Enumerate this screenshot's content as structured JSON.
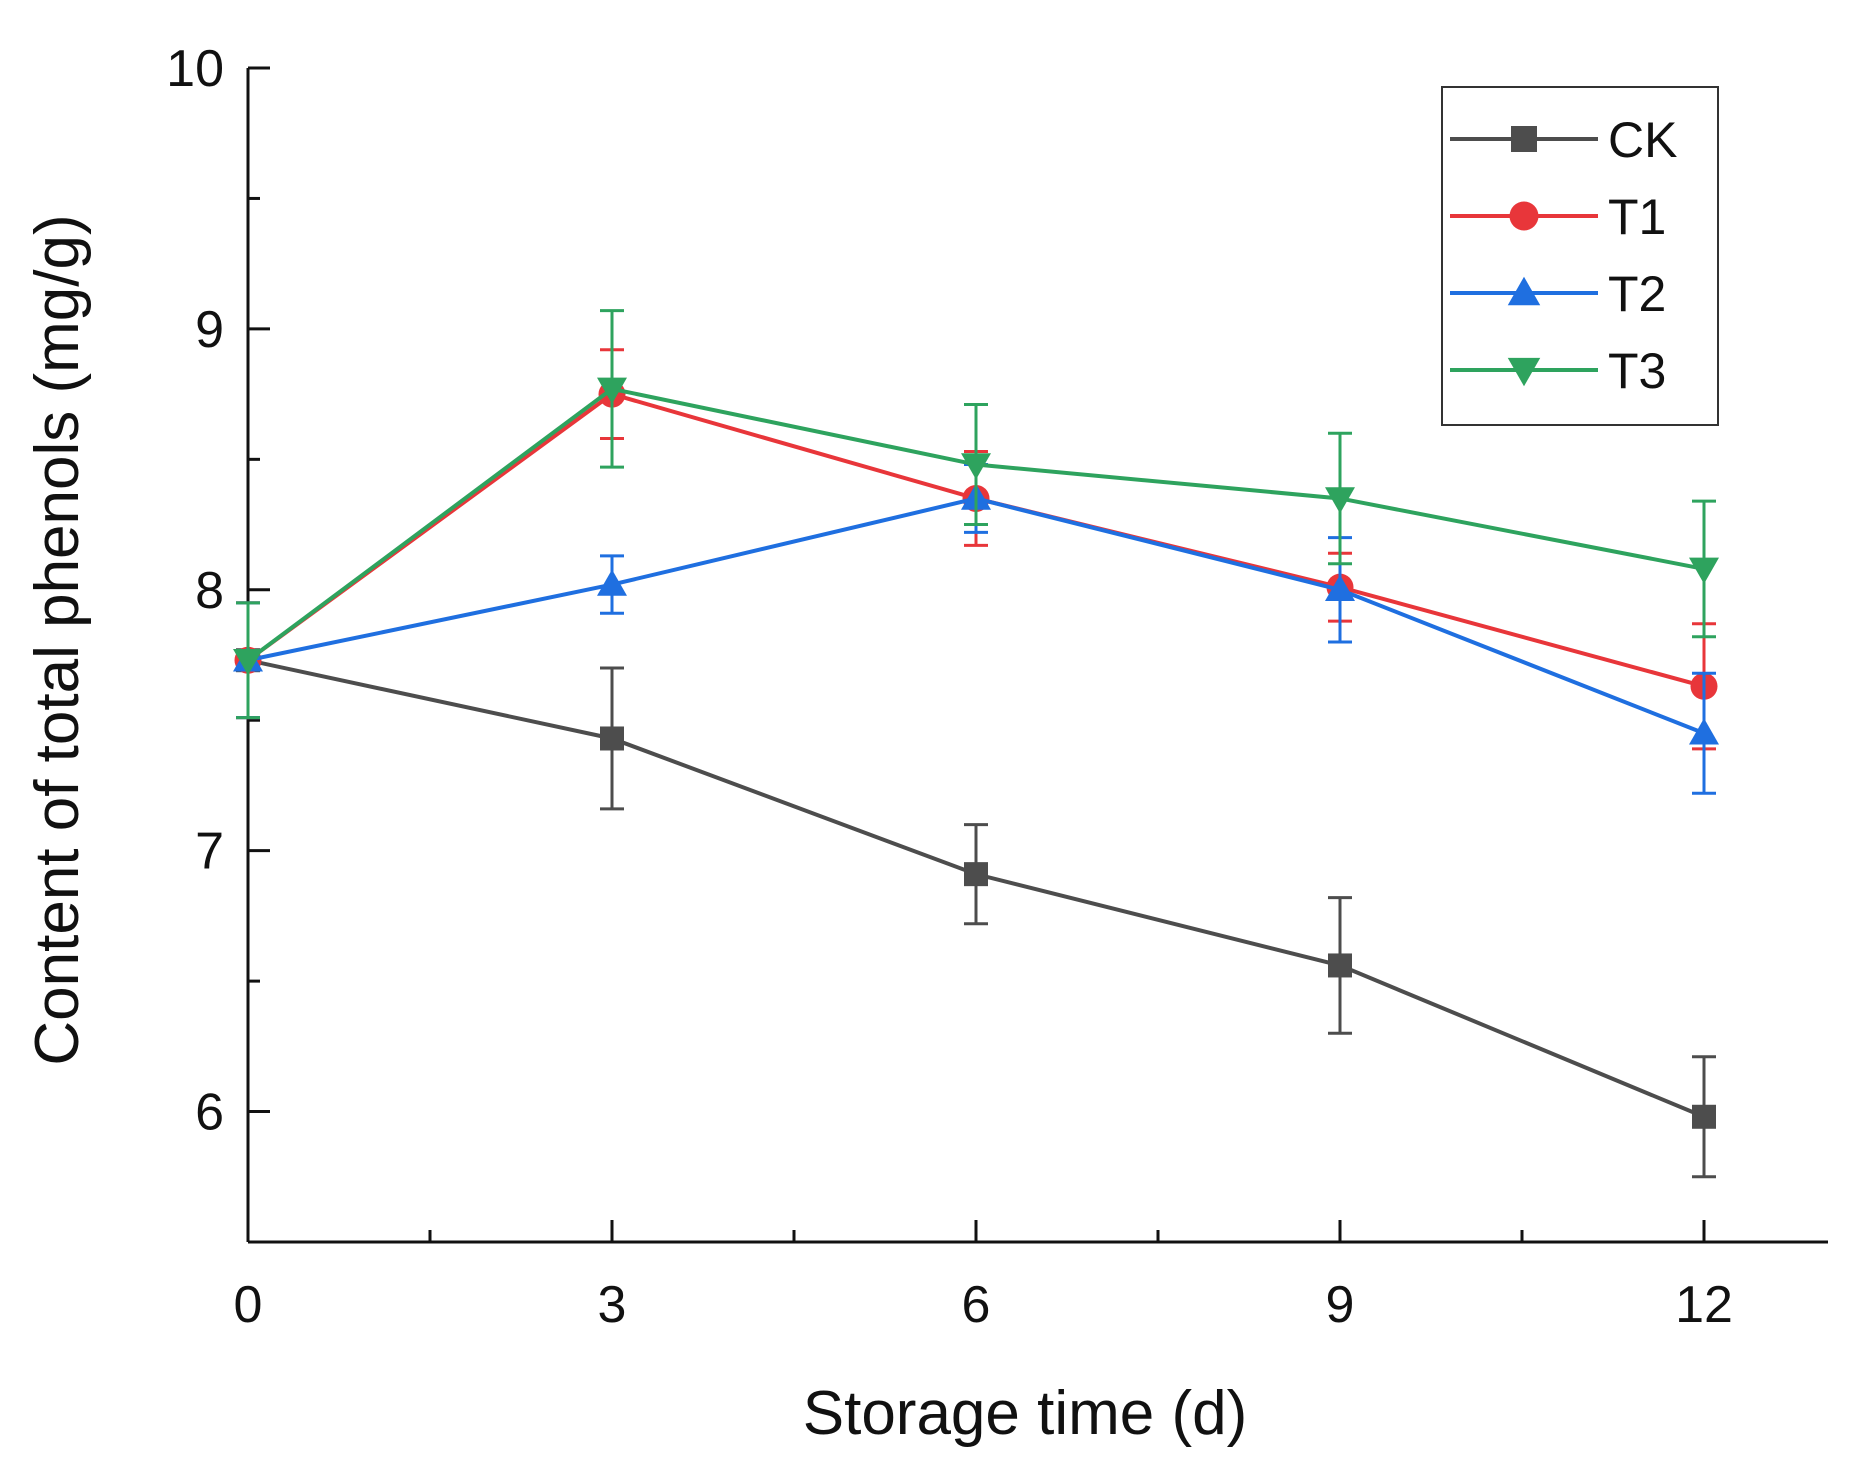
{
  "chart_data": {
    "type": "line",
    "title": "",
    "xlabel": "Storage time (d)",
    "ylabel": "Content of total phenols (mg/g)",
    "xlim": [
      0,
      13
    ],
    "ylim": [
      5.5,
      10
    ],
    "x": [
      0,
      3,
      6,
      9,
      12
    ],
    "x_ticks": [
      {
        "value": 0,
        "label": "0"
      },
      {
        "value": 3,
        "label": "3"
      },
      {
        "value": 6,
        "label": "6"
      },
      {
        "value": 9,
        "label": "9"
      },
      {
        "value": 12,
        "label": "12"
      }
    ],
    "x_minor_ticks": [
      1.5,
      4.5,
      7.5,
      10.5
    ],
    "y_ticks": [
      {
        "value": 6,
        "label": "6"
      },
      {
        "value": 7,
        "label": "7"
      },
      {
        "value": 8,
        "label": "8"
      },
      {
        "value": 9,
        "label": "9"
      },
      {
        "value": 10,
        "label": "10"
      }
    ],
    "y_minor_ticks": [
      6.5,
      7.5,
      8.5,
      9.5
    ],
    "legend_position": "top-right",
    "grid": false,
    "series": [
      {
        "name": "CK",
        "color": "#4d4d4d",
        "marker": "square",
        "values": [
          7.73,
          7.43,
          6.91,
          6.56,
          5.98
        ],
        "error": [
          0.22,
          0.27,
          0.19,
          0.26,
          0.23
        ]
      },
      {
        "name": "T1",
        "color": "#e8363a",
        "marker": "circle",
        "values": [
          7.73,
          8.75,
          8.35,
          8.01,
          7.63
        ],
        "error": [
          0.22,
          0.17,
          0.18,
          0.13,
          0.24
        ]
      },
      {
        "name": "T2",
        "color": "#1f6fe0",
        "marker": "triangle-up",
        "values": [
          7.73,
          8.02,
          8.35,
          8.0,
          7.45
        ],
        "error": [
          0.22,
          0.11,
          0.13,
          0.2,
          0.23
        ]
      },
      {
        "name": "T3",
        "color": "#2ea35e",
        "marker": "triangle-down",
        "values": [
          7.73,
          8.77,
          8.48,
          8.35,
          8.08
        ],
        "error": [
          0.22,
          0.3,
          0.23,
          0.25,
          0.26
        ]
      }
    ]
  }
}
